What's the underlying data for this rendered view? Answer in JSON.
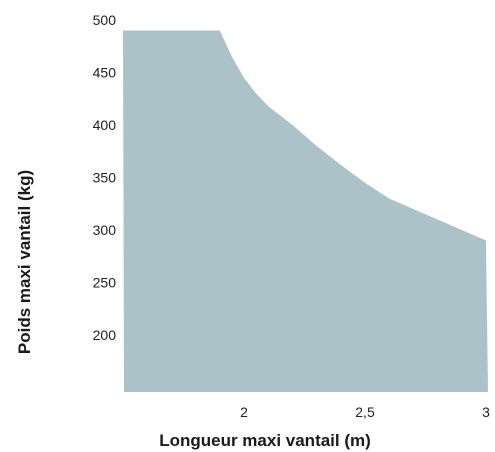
{
  "chart_data": {
    "type": "area",
    "title": "",
    "xlabel": "Longueur maxi vantail (m)",
    "ylabel": "Poids maxi vantail (kg)",
    "xlim": [
      1.5,
      3.0
    ],
    "ylim": [
      150,
      500
    ],
    "x_ticks": [
      2,
      2.5,
      3
    ],
    "x_tick_labels": [
      "2",
      "2,5",
      "3"
    ],
    "y_ticks": [
      200,
      250,
      300,
      350,
      400,
      450,
      500
    ],
    "y_tick_labels": [
      "200",
      "250",
      "300",
      "350",
      "400",
      "450",
      "500"
    ],
    "grid": false,
    "legend": "none",
    "fill_color": "#abc2c9",
    "series": [
      {
        "x": [
          1.5,
          1.9,
          1.95,
          2.0,
          2.05,
          2.1,
          2.2,
          2.3,
          2.4,
          2.5,
          2.6,
          2.7,
          2.8,
          2.9,
          3.0
        ],
        "values": [
          490,
          490,
          465,
          445,
          430,
          418,
          400,
          380,
          362,
          345,
          330,
          320,
          310,
          300,
          290
        ]
      }
    ]
  }
}
